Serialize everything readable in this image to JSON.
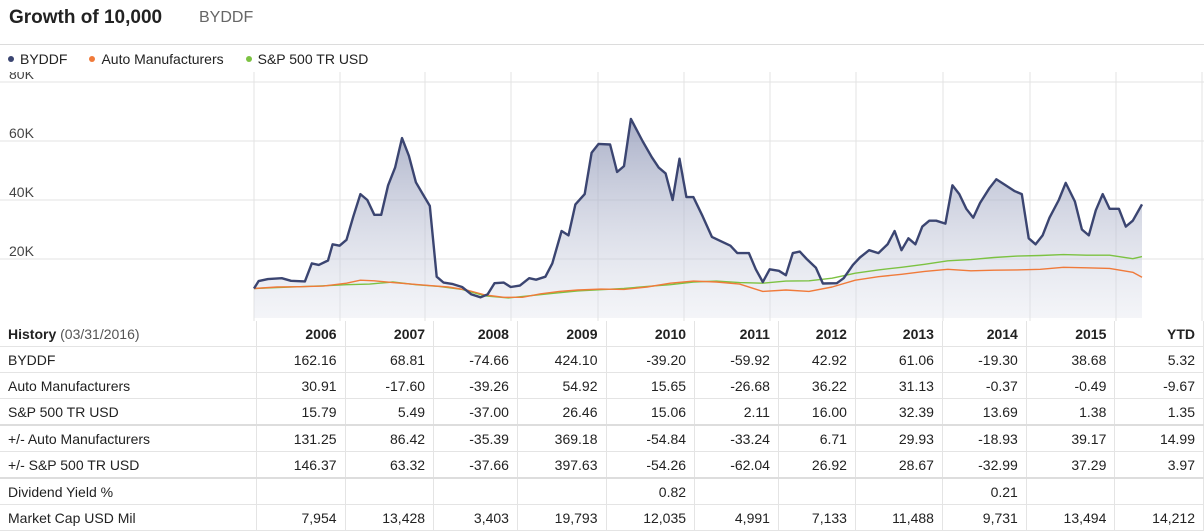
{
  "header": {
    "title": "Growth of 10,000",
    "ticker": "BYDDF"
  },
  "legend": [
    {
      "label": "BYDDF",
      "color": "#3b4571"
    },
    {
      "label": "Auto Manufacturers",
      "color": "#f07a3a"
    },
    {
      "label": "S&P 500 TR USD",
      "color": "#7cc242"
    }
  ],
  "chart_data": {
    "type": "area",
    "title": "Growth of 10,000",
    "y_ticks": [
      "80K",
      "60K",
      "40K",
      "20K"
    ],
    "ylim": [
      0,
      80000
    ],
    "x_start": "2005-12",
    "x_end": "2016-03",
    "grid": true,
    "series": [
      {
        "name": "BYDDF",
        "points": [
          [
            0.0,
            10000
          ],
          [
            0.1,
            12500
          ],
          [
            0.3,
            13200
          ],
          [
            0.6,
            13500
          ],
          [
            0.8,
            12600
          ],
          [
            1.1,
            12400
          ],
          [
            1.25,
            18500
          ],
          [
            1.4,
            18000
          ],
          [
            1.6,
            19500
          ],
          [
            1.7,
            25000
          ],
          [
            1.85,
            24500
          ],
          [
            2.0,
            26500
          ],
          [
            2.15,
            34500
          ],
          [
            2.3,
            42000
          ],
          [
            2.45,
            40000
          ],
          [
            2.6,
            35000
          ],
          [
            2.75,
            35000
          ],
          [
            2.9,
            45000
          ],
          [
            3.05,
            51000
          ],
          [
            3.2,
            61000
          ],
          [
            3.35,
            55000
          ],
          [
            3.5,
            46000
          ],
          [
            3.65,
            42000
          ],
          [
            3.8,
            38000
          ],
          [
            3.95,
            14000
          ],
          [
            4.1,
            12000
          ],
          [
            4.3,
            11500
          ],
          [
            4.5,
            10500
          ],
          [
            4.7,
            8000
          ],
          [
            4.9,
            7000
          ],
          [
            5.05,
            8000
          ],
          [
            5.2,
            11800
          ],
          [
            5.4,
            12000
          ],
          [
            5.55,
            10500
          ],
          [
            5.75,
            11000
          ],
          [
            5.95,
            13500
          ],
          [
            6.1,
            13000
          ],
          [
            6.3,
            14000
          ],
          [
            6.45,
            18500
          ],
          [
            6.65,
            29500
          ],
          [
            6.8,
            28000
          ],
          [
            6.95,
            38500
          ],
          [
            7.15,
            42000
          ],
          [
            7.3,
            56000
          ],
          [
            7.45,
            59000
          ],
          [
            7.7,
            58800
          ],
          [
            7.85,
            49500
          ],
          [
            8.0,
            51500
          ],
          [
            8.15,
            67500
          ],
          [
            8.4,
            60000
          ],
          [
            8.6,
            54500
          ],
          [
            8.75,
            51000
          ],
          [
            8.9,
            49000
          ],
          [
            9.05,
            40000
          ],
          [
            9.2,
            54000
          ],
          [
            9.35,
            41000
          ],
          [
            9.5,
            41000
          ],
          [
            9.7,
            34500
          ],
          [
            9.9,
            27500
          ],
          [
            10.1,
            26000
          ],
          [
            10.3,
            24500
          ],
          [
            10.45,
            22000
          ],
          [
            10.7,
            22000
          ],
          [
            10.85,
            16500
          ],
          [
            11.0,
            12200
          ],
          [
            11.15,
            16500
          ],
          [
            11.35,
            16000
          ],
          [
            11.5,
            14500
          ],
          [
            11.65,
            22000
          ],
          [
            11.8,
            22500
          ],
          [
            11.95,
            20000
          ],
          [
            12.15,
            17000
          ],
          [
            12.3,
            11700
          ],
          [
            12.6,
            11800
          ],
          [
            12.75,
            13500
          ],
          [
            12.95,
            18000
          ],
          [
            13.1,
            20500
          ],
          [
            13.3,
            23000
          ],
          [
            13.5,
            22000
          ],
          [
            13.7,
            25000
          ],
          [
            13.85,
            29500
          ],
          [
            14.0,
            23000
          ],
          [
            14.15,
            27000
          ],
          [
            14.3,
            25000
          ],
          [
            14.45,
            31000
          ],
          [
            14.6,
            33000
          ],
          [
            14.75,
            33000
          ],
          [
            14.95,
            32000
          ],
          [
            15.1,
            45000
          ],
          [
            15.25,
            42000
          ],
          [
            15.4,
            37000
          ],
          [
            15.55,
            34000
          ],
          [
            15.7,
            39000
          ],
          [
            15.9,
            44000
          ],
          [
            16.05,
            47000
          ],
          [
            16.25,
            45000
          ],
          [
            16.45,
            43000
          ],
          [
            16.6,
            42000
          ],
          [
            16.75,
            27000
          ],
          [
            16.9,
            25000
          ],
          [
            17.05,
            28000
          ],
          [
            17.2,
            34000
          ],
          [
            17.4,
            40000
          ],
          [
            17.55,
            45800
          ],
          [
            17.75,
            39500
          ],
          [
            17.9,
            30000
          ],
          [
            18.05,
            28000
          ],
          [
            18.2,
            36500
          ],
          [
            18.35,
            42000
          ],
          [
            18.5,
            37000
          ],
          [
            18.7,
            37000
          ],
          [
            18.85,
            31000
          ],
          [
            19.0,
            33000
          ],
          [
            19.2,
            38500
          ]
        ]
      },
      {
        "name": "Auto Manufacturers",
        "points": [
          [
            0.0,
            10000
          ],
          [
            0.5,
            10500
          ],
          [
            1.0,
            10600
          ],
          [
            1.5,
            10800
          ],
          [
            2.0,
            11800
          ],
          [
            2.3,
            12800
          ],
          [
            2.6,
            12600
          ],
          [
            3.0,
            12000
          ],
          [
            3.4,
            11500
          ],
          [
            3.8,
            11000
          ],
          [
            4.2,
            10500
          ],
          [
            4.6,
            9500
          ],
          [
            5.0,
            7800
          ],
          [
            5.4,
            7000
          ],
          [
            5.8,
            7000
          ],
          [
            6.2,
            8200
          ],
          [
            6.6,
            9000
          ],
          [
            7.0,
            9500
          ],
          [
            7.5,
            9800
          ],
          [
            8.0,
            9700
          ],
          [
            8.5,
            10500
          ],
          [
            9.0,
            11800
          ],
          [
            9.5,
            12500
          ],
          [
            10.0,
            12200
          ],
          [
            10.5,
            11500
          ],
          [
            11.0,
            9000
          ],
          [
            11.5,
            9500
          ],
          [
            12.0,
            9000
          ],
          [
            12.5,
            10500
          ],
          [
            13.0,
            12800
          ],
          [
            13.5,
            14000
          ],
          [
            14.0,
            14800
          ],
          [
            14.5,
            15800
          ],
          [
            15.0,
            16500
          ],
          [
            15.5,
            16000
          ],
          [
            16.0,
            16200
          ],
          [
            16.5,
            16300
          ],
          [
            17.0,
            16500
          ],
          [
            17.5,
            17200
          ],
          [
            18.0,
            17000
          ],
          [
            18.5,
            16800
          ],
          [
            19.0,
            15500
          ],
          [
            19.2,
            13800
          ]
        ]
      },
      {
        "name": "S&P 500 TR USD",
        "points": [
          [
            0.0,
            10000
          ],
          [
            0.5,
            10300
          ],
          [
            1.0,
            10600
          ],
          [
            1.5,
            10900
          ],
          [
            2.0,
            11300
          ],
          [
            2.5,
            11500
          ],
          [
            3.0,
            12200
          ],
          [
            3.5,
            11300
          ],
          [
            4.0,
            10700
          ],
          [
            4.5,
            9700
          ],
          [
            5.0,
            7500
          ],
          [
            5.5,
            6800
          ],
          [
            6.0,
            7600
          ],
          [
            6.5,
            8400
          ],
          [
            7.0,
            9200
          ],
          [
            7.5,
            9600
          ],
          [
            8.0,
            10000
          ],
          [
            8.5,
            10700
          ],
          [
            9.0,
            11300
          ],
          [
            9.5,
            12200
          ],
          [
            10.0,
            12500
          ],
          [
            10.5,
            12000
          ],
          [
            11.0,
            11800
          ],
          [
            11.5,
            12500
          ],
          [
            12.0,
            12600
          ],
          [
            12.5,
            13500
          ],
          [
            13.0,
            15200
          ],
          [
            13.5,
            16300
          ],
          [
            14.0,
            17200
          ],
          [
            14.5,
            18200
          ],
          [
            15.0,
            19400
          ],
          [
            15.5,
            19800
          ],
          [
            16.0,
            20500
          ],
          [
            16.5,
            21000
          ],
          [
            17.0,
            21200
          ],
          [
            17.5,
            21500
          ],
          [
            18.0,
            21300
          ],
          [
            18.5,
            21300
          ],
          [
            19.0,
            20100
          ],
          [
            19.2,
            20800
          ]
        ]
      }
    ]
  },
  "table": {
    "history_label": "History",
    "history_date": "(03/31/2016)",
    "years": [
      "2006",
      "2007",
      "2008",
      "2009",
      "2010",
      "2011",
      "2012",
      "2013",
      "2014",
      "2015",
      "YTD"
    ],
    "rows": [
      {
        "label": "BYDDF",
        "values": [
          "162.16",
          "68.81",
          "-74.66",
          "424.10",
          "-39.20",
          "-59.92",
          "42.92",
          "61.06",
          "-19.30",
          "38.68",
          "5.32"
        ]
      },
      {
        "label": "Auto Manufacturers",
        "values": [
          "30.91",
          "-17.60",
          "-39.26",
          "54.92",
          "15.65",
          "-26.68",
          "36.22",
          "31.13",
          "-0.37",
          "-0.49",
          "-9.67"
        ]
      },
      {
        "label": "S&P 500 TR USD",
        "values": [
          "15.79",
          "5.49",
          "-37.00",
          "26.46",
          "15.06",
          "2.11",
          "16.00",
          "32.39",
          "13.69",
          "1.38",
          "1.35"
        ]
      },
      {
        "label": "+/- Auto Manufacturers",
        "values": [
          "131.25",
          "86.42",
          "-35.39",
          "369.18",
          "-54.84",
          "-33.24",
          "6.71",
          "29.93",
          "-18.93",
          "39.17",
          "14.99"
        ]
      },
      {
        "label": "+/- S&P 500 TR USD",
        "values": [
          "146.37",
          "63.32",
          "-37.66",
          "397.63",
          "-54.26",
          "-62.04",
          "26.92",
          "28.67",
          "-32.99",
          "37.29",
          "3.97"
        ]
      },
      {
        "label": "Dividend Yield %",
        "values": [
          "",
          "",
          "",
          "",
          "0.82",
          "",
          "",
          "",
          "0.21",
          "",
          ""
        ]
      },
      {
        "label": "Market Cap USD Mil",
        "values": [
          "7,954",
          "13,428",
          "3,403",
          "19,793",
          "12,035",
          "4,991",
          "7,133",
          "11,488",
          "9,731",
          "13,494",
          "14,212"
        ]
      }
    ]
  }
}
